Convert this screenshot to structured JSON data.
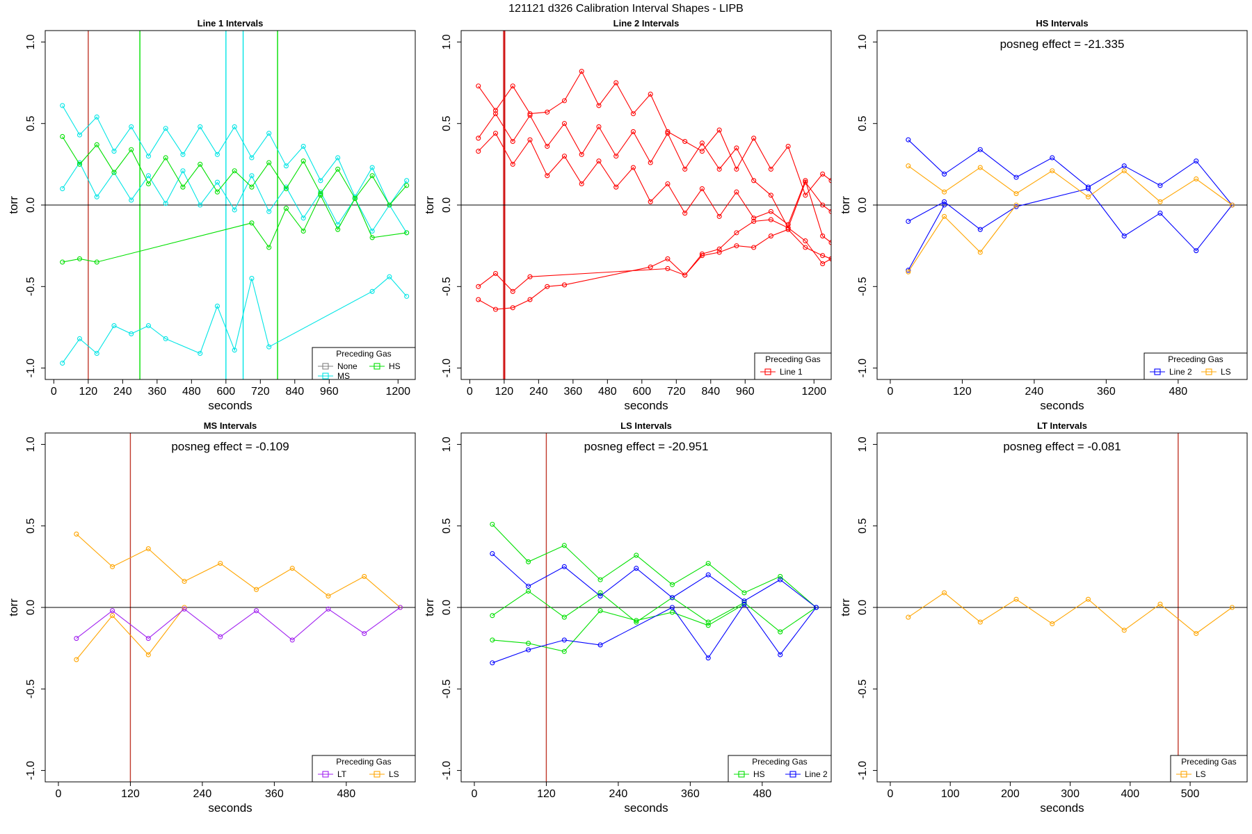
{
  "page_title": "121121   d326   Calibration Interval Shapes - LIPB",
  "colors": {
    "None": "#808080",
    "HS": "#00e000",
    "MS": "#00e5e5",
    "Line 1": "#ff0000",
    "Line 2": "#0000ff",
    "LS": "#ffa500",
    "LT": "#a020f0",
    "ref_line": "#8b0000"
  },
  "chart_data": [
    {
      "type": "line",
      "title": "Line 1 Intervals",
      "xlabel": "seconds",
      "ylabel": "torr",
      "xlim": [
        -30,
        1260
      ],
      "ylim": [
        -1.07,
        1.07
      ],
      "xticks": [
        0,
        120,
        240,
        360,
        480,
        600,
        720,
        840,
        960,
        1200
      ],
      "yticks": [
        -1.0,
        -0.5,
        0.0,
        0.5,
        1.0
      ],
      "vlines": [
        {
          "x": 120,
          "color": "#c0392b"
        },
        {
          "x": 300,
          "color": "#00e000"
        },
        {
          "x": 600,
          "color": "#00e5e5"
        },
        {
          "x": 660,
          "color": "#00e5e5"
        },
        {
          "x": 780,
          "color": "#00e000"
        }
      ],
      "annotation": "",
      "legend": {
        "title": "Preceding Gas",
        "entries": [
          "None",
          "HS",
          "MS"
        ]
      },
      "series": [
        {
          "name": "MS",
          "x": [
            30,
            90,
            150,
            210,
            270,
            330,
            390,
            450,
            510,
            570,
            630,
            690,
            750,
            810,
            870,
            930,
            990,
            1050,
            1110,
            1170,
            1230
          ],
          "y": [
            0.61,
            0.43,
            0.54,
            0.33,
            0.48,
            0.3,
            0.47,
            0.31,
            0.48,
            0.31,
            0.48,
            0.29,
            0.44,
            0.24,
            0.36,
            0.15,
            0.29,
            0.05,
            0.23,
            0.0,
            0.15
          ]
        },
        {
          "name": "MS",
          "x": [
            30,
            90,
            150,
            210,
            270,
            330,
            390,
            450,
            510,
            570,
            630,
            690,
            750,
            810,
            870,
            930,
            990,
            1050,
            1110,
            1170,
            1230
          ],
          "y": [
            0.1,
            0.26,
            0.05,
            0.2,
            0.03,
            0.18,
            0.01,
            0.21,
            0.0,
            0.14,
            -0.03,
            0.18,
            -0.04,
            0.11,
            -0.08,
            0.08,
            -0.12,
            0.04,
            -0.16,
            0.0,
            -0.17
          ]
        },
        {
          "name": "MS",
          "x": [
            30,
            90,
            150,
            210,
            270,
            330,
            390,
            510,
            570,
            630,
            690,
            750,
            1110,
            1170,
            1230
          ],
          "y": [
            -0.97,
            -0.82,
            -0.91,
            -0.74,
            -0.79,
            -0.74,
            -0.82,
            -0.91,
            -0.62,
            -0.89,
            -0.45,
            -0.87,
            -0.53,
            -0.44,
            -0.56
          ]
        },
        {
          "name": "HS",
          "x": [
            30,
            90,
            150,
            210,
            270,
            330,
            390,
            450,
            510,
            570,
            630,
            690,
            750,
            810,
            870,
            930,
            990,
            1050,
            1110,
            1170,
            1230
          ],
          "y": [
            0.42,
            0.25,
            0.37,
            0.2,
            0.34,
            0.13,
            0.29,
            0.11,
            0.25,
            0.08,
            0.21,
            0.11,
            0.26,
            0.1,
            0.27,
            0.07,
            0.22,
            0.04,
            0.18,
            0.0,
            0.12
          ]
        },
        {
          "name": "HS",
          "x": [
            30,
            90,
            150,
            690,
            750,
            810,
            870,
            930,
            990,
            1050,
            1110,
            1230
          ],
          "y": [
            -0.35,
            -0.33,
            -0.35,
            -0.11,
            -0.26,
            -0.02,
            -0.16,
            0.06,
            -0.15,
            0.04,
            -0.2,
            -0.17
          ]
        }
      ]
    },
    {
      "type": "line",
      "title": "Line 2 Intervals",
      "xlabel": "seconds",
      "ylabel": "torr",
      "xlim": [
        -30,
        1260
      ],
      "ylim": [
        -1.07,
        1.07
      ],
      "xticks": [
        0,
        120,
        240,
        360,
        480,
        600,
        720,
        840,
        960,
        1200
      ],
      "yticks": [
        -1.0,
        -0.5,
        0.0,
        0.5,
        1.0
      ],
      "vlines": [
        {
          "x": 118,
          "color": "#cc0000"
        },
        {
          "x": 122,
          "color": "#cc0000"
        }
      ],
      "annotation": "",
      "legend": {
        "title": "Preceding Gas",
        "entries": [
          "Line 1"
        ]
      },
      "series": [
        {
          "name": "Line 1",
          "x": [
            30,
            90,
            150,
            210,
            270,
            330,
            390,
            450,
            510,
            570,
            630,
            690,
            750,
            810,
            870,
            930,
            990,
            1050,
            1110,
            1170,
            1230,
            1260
          ],
          "y": [
            0.73,
            0.58,
            0.73,
            0.56,
            0.57,
            0.64,
            0.82,
            0.61,
            0.75,
            0.56,
            0.68,
            0.45,
            0.39,
            0.33,
            0.46,
            0.22,
            0.41,
            0.22,
            0.36,
            0.06,
            0.19,
            0.15
          ]
        },
        {
          "name": "Line 1",
          "x": [
            30,
            90,
            150,
            210,
            270,
            330,
            390,
            450,
            510,
            570,
            630,
            690,
            750,
            810,
            870,
            930,
            990,
            1050,
            1110,
            1170,
            1230,
            1260
          ],
          "y": [
            0.41,
            0.56,
            0.39,
            0.55,
            0.36,
            0.5,
            0.31,
            0.48,
            0.3,
            0.45,
            0.26,
            0.44,
            0.22,
            0.38,
            0.22,
            0.35,
            0.15,
            0.06,
            -0.14,
            0.14,
            0.0,
            -0.04
          ]
        },
        {
          "name": "Line 1",
          "x": [
            30,
            90,
            150,
            210,
            270,
            330,
            390,
            450,
            510,
            570,
            630,
            690,
            750,
            810,
            870,
            930,
            990,
            1050,
            1110,
            1170,
            1230,
            1260
          ],
          "y": [
            0.33,
            0.44,
            0.25,
            0.4,
            0.18,
            0.3,
            0.13,
            0.27,
            0.11,
            0.23,
            0.02,
            0.13,
            -0.05,
            0.1,
            -0.07,
            0.08,
            -0.08,
            -0.04,
            -0.12,
            0.15,
            -0.19,
            -0.23
          ]
        },
        {
          "name": "Line 1",
          "x": [
            30,
            90,
            150,
            210,
            690,
            750,
            810,
            870,
            930,
            990,
            1050,
            1110,
            1170,
            1230,
            1260
          ],
          "y": [
            -0.5,
            -0.42,
            -0.53,
            -0.44,
            -0.39,
            -0.43,
            -0.3,
            -0.27,
            -0.17,
            -0.1,
            -0.09,
            -0.14,
            -0.22,
            -0.36,
            -0.33
          ]
        },
        {
          "name": "Line 1",
          "x": [
            30,
            90,
            150,
            210,
            270,
            330,
            630,
            690,
            750,
            810,
            870,
            930,
            990,
            1050,
            1110,
            1170,
            1230,
            1260
          ],
          "y": [
            -0.58,
            -0.64,
            -0.63,
            -0.58,
            -0.5,
            -0.49,
            -0.38,
            -0.33,
            -0.43,
            -0.31,
            -0.29,
            -0.25,
            -0.26,
            -0.19,
            -0.15,
            -0.26,
            -0.31,
            -0.33
          ]
        }
      ]
    },
    {
      "type": "line",
      "title": "HS Intervals",
      "xlabel": "seconds",
      "ylabel": "torr",
      "xlim": [
        -22,
        595
      ],
      "ylim": [
        -1.07,
        1.07
      ],
      "xticks": [
        0,
        120,
        240,
        360,
        480
      ],
      "yticks": [
        -1.0,
        -0.5,
        0.0,
        0.5,
        1.0
      ],
      "vlines": [],
      "annotation": "posneg effect = -21.335",
      "legend": {
        "title": "Preceding Gas",
        "entries": [
          "Line 2",
          "LS"
        ]
      },
      "series": [
        {
          "name": "Line 2",
          "x": [
            30,
            90,
            150,
            210,
            270,
            330,
            390,
            450,
            510,
            570
          ],
          "y": [
            0.4,
            0.19,
            0.34,
            0.17,
            0.29,
            0.11,
            0.24,
            0.12,
            0.27,
            0.0
          ]
        },
        {
          "name": "Line 2",
          "x": [
            30,
            90,
            150,
            210,
            330,
            390,
            450,
            510,
            570
          ],
          "y": [
            -0.1,
            0.02,
            -0.15,
            -0.01,
            0.1,
            -0.19,
            -0.05,
            -0.28,
            0.0
          ]
        },
        {
          "name": "Line 2",
          "x": [
            30,
            90
          ],
          "y": [
            -0.4,
            0.0
          ]
        },
        {
          "name": "LS",
          "x": [
            30,
            90,
            150,
            210,
            270,
            330,
            390,
            450,
            510,
            570
          ],
          "y": [
            0.24,
            0.08,
            0.23,
            0.07,
            0.21,
            0.05,
            0.21,
            0.02,
            0.16,
            0.0
          ]
        },
        {
          "name": "LS",
          "x": [
            30,
            90,
            150,
            210
          ],
          "y": [
            -0.41,
            -0.07,
            -0.29,
            0.0
          ]
        }
      ]
    },
    {
      "type": "line",
      "title": "MS Intervals",
      "xlabel": "seconds",
      "ylabel": "torr",
      "xlim": [
        -22,
        595
      ],
      "ylim": [
        -1.07,
        1.07
      ],
      "xticks": [
        0,
        120,
        240,
        360,
        480
      ],
      "yticks": [
        -1.0,
        -0.5,
        0.0,
        0.5,
        1.0
      ],
      "vlines": [
        {
          "x": 120,
          "color": "#c0392b"
        }
      ],
      "annotation": "posneg effect = -0.109",
      "legend": {
        "title": "Preceding Gas",
        "entries": [
          "LT",
          "LS"
        ]
      },
      "series": [
        {
          "name": "LS",
          "x": [
            30,
            90,
            150,
            210,
            270,
            330,
            390,
            450,
            510,
            570
          ],
          "y": [
            0.45,
            0.25,
            0.36,
            0.16,
            0.27,
            0.11,
            0.24,
            0.07,
            0.19,
            0.0
          ]
        },
        {
          "name": "LS",
          "x": [
            30,
            90,
            150,
            210
          ],
          "y": [
            -0.32,
            -0.05,
            -0.29,
            0.0
          ]
        },
        {
          "name": "LT",
          "x": [
            30,
            90,
            150,
            210,
            270,
            330,
            390,
            450,
            510,
            570
          ],
          "y": [
            -0.19,
            -0.02,
            -0.19,
            -0.01,
            -0.18,
            -0.02,
            -0.2,
            -0.01,
            -0.16,
            0.0
          ]
        }
      ]
    },
    {
      "type": "line",
      "title": "LS Intervals",
      "xlabel": "seconds",
      "ylabel": "torr",
      "xlim": [
        -22,
        595
      ],
      "ylim": [
        -1.07,
        1.07
      ],
      "xticks": [
        0,
        120,
        240,
        360,
        480
      ],
      "yticks": [
        -1.0,
        -0.5,
        0.0,
        0.5,
        1.0
      ],
      "vlines": [
        {
          "x": 120,
          "color": "#c0392b"
        }
      ],
      "annotation": "posneg effect = -20.951",
      "legend": {
        "title": "Preceding Gas",
        "entries": [
          "HS",
          "Line 2"
        ]
      },
      "series": [
        {
          "name": "HS",
          "x": [
            30,
            90,
            150,
            210,
            270,
            330,
            390,
            450,
            510,
            570
          ],
          "y": [
            0.51,
            0.28,
            0.38,
            0.17,
            0.32,
            0.14,
            0.27,
            0.09,
            0.19,
            0.0
          ]
        },
        {
          "name": "HS",
          "x": [
            30,
            90,
            150,
            210,
            270,
            330,
            390,
            450,
            510,
            570
          ],
          "y": [
            -0.05,
            0.1,
            -0.06,
            0.09,
            -0.09,
            0.06,
            -0.09,
            0.03,
            -0.15,
            0.0
          ]
        },
        {
          "name": "HS",
          "x": [
            30,
            90,
            150,
            210,
            270,
            330,
            390,
            450
          ],
          "y": [
            -0.2,
            -0.22,
            -0.27,
            -0.02,
            -0.08,
            -0.03,
            -0.11,
            0.02
          ]
        },
        {
          "name": "Line 2",
          "x": [
            30,
            90,
            150,
            210,
            270,
            330,
            390,
            450,
            510,
            570
          ],
          "y": [
            0.33,
            0.13,
            0.25,
            0.07,
            0.24,
            0.06,
            0.2,
            0.04,
            0.17,
            0.0
          ]
        },
        {
          "name": "Line 2",
          "x": [
            30,
            90,
            150,
            210,
            330,
            390,
            450,
            510,
            570
          ],
          "y": [
            -0.34,
            -0.26,
            -0.2,
            -0.23,
            0.0,
            -0.31,
            0.02,
            -0.29,
            0.0
          ]
        }
      ]
    },
    {
      "type": "line",
      "title": "LT Intervals",
      "xlabel": "seconds",
      "ylabel": "torr",
      "xlim": [
        -22,
        595
      ],
      "ylim": [
        -1.07,
        1.07
      ],
      "xticks": [
        0,
        100,
        200,
        300,
        400,
        500
      ],
      "yticks": [
        -1.0,
        -0.5,
        0.0,
        0.5,
        1.0
      ],
      "vlines": [
        {
          "x": 480,
          "color": "#c0392b"
        }
      ],
      "annotation": "posneg effect = -0.081",
      "legend": {
        "title": "Preceding Gas",
        "entries": [
          "LS"
        ]
      },
      "series": [
        {
          "name": "LS",
          "x": [
            30,
            90,
            150,
            210,
            270,
            330,
            390,
            450,
            510,
            570
          ],
          "y": [
            -0.06,
            0.09,
            -0.09,
            0.05,
            -0.1,
            0.05,
            -0.14,
            0.02,
            -0.16,
            0.0
          ]
        }
      ]
    }
  ]
}
